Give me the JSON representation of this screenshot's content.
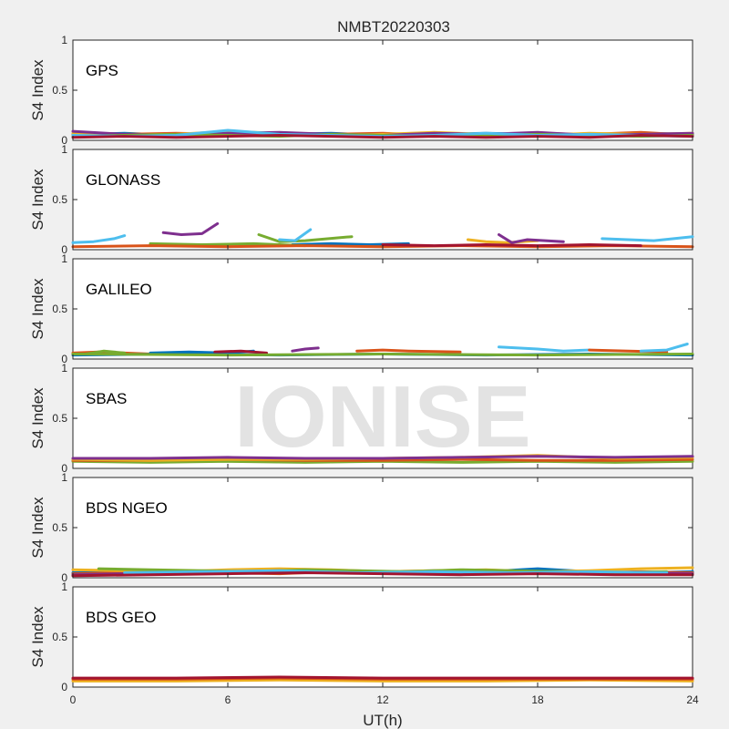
{
  "chart_data": {
    "type": "line",
    "title": "NMBT20220303",
    "xlabel": "UT(h)",
    "ylabel": "S4 Index",
    "xlim": [
      0,
      24
    ],
    "ylim": [
      0,
      1
    ],
    "x_ticks": [
      "0",
      "6",
      "12",
      "18",
      "24"
    ],
    "y_ticks": [
      "0",
      "0.5",
      "1"
    ],
    "watermark": "IONISE",
    "series_colors": [
      "#0072bd",
      "#d95319",
      "#edb120",
      "#7e2f8e",
      "#77ac30",
      "#4dbeee",
      "#a2142f"
    ],
    "panels": [
      {
        "label": "GPS",
        "series": [
          {
            "color": "#0072bd",
            "x": [
              0,
              2,
              4,
              6,
              8,
              10,
              12,
              14,
              16,
              18,
              20,
              22,
              24
            ],
            "y": [
              0.06,
              0.07,
              0.05,
              0.08,
              0.06,
              0.07,
              0.05,
              0.06,
              0.07,
              0.06,
              0.05,
              0.07,
              0.06
            ]
          },
          {
            "color": "#d95319",
            "x": [
              0,
              2,
              4,
              6,
              8,
              10,
              12,
              14,
              16,
              18,
              20,
              22,
              24
            ],
            "y": [
              0.05,
              0.06,
              0.07,
              0.06,
              0.05,
              0.06,
              0.07,
              0.05,
              0.06,
              0.07,
              0.06,
              0.08,
              0.05
            ]
          },
          {
            "color": "#edb120",
            "x": [
              0,
              2,
              4,
              6,
              8,
              10,
              12,
              14,
              16,
              18,
              20,
              22,
              24
            ],
            "y": [
              0.07,
              0.05,
              0.06,
              0.09,
              0.07,
              0.05,
              0.06,
              0.08,
              0.06,
              0.05,
              0.07,
              0.06,
              0.07
            ]
          },
          {
            "color": "#7e2f8e",
            "x": [
              0,
              2,
              4,
              6,
              8,
              10,
              12,
              14,
              16,
              18,
              20,
              22,
              24
            ],
            "y": [
              0.09,
              0.06,
              0.05,
              0.07,
              0.08,
              0.06,
              0.05,
              0.07,
              0.06,
              0.08,
              0.05,
              0.06,
              0.07
            ]
          },
          {
            "color": "#77ac30",
            "x": [
              0,
              2,
              4,
              6,
              8,
              10,
              12,
              14,
              16,
              18,
              20,
              22,
              24
            ],
            "y": [
              0.04,
              0.05,
              0.06,
              0.05,
              0.04,
              0.06,
              0.05,
              0.04,
              0.05,
              0.06,
              0.05,
              0.04,
              0.05
            ]
          },
          {
            "color": "#4dbeee",
            "x": [
              0,
              2,
              4,
              6,
              8,
              10,
              12,
              14,
              16,
              18,
              20,
              22,
              24
            ],
            "y": [
              0.05,
              0.04,
              0.05,
              0.1,
              0.06,
              0.05,
              0.04,
              0.05,
              0.07,
              0.05,
              0.06,
              0.05,
              0.04
            ]
          },
          {
            "color": "#a2142f",
            "x": [
              0,
              2,
              4,
              6,
              8,
              10,
              12,
              14,
              16,
              18,
              20,
              22,
              24
            ],
            "y": [
              0.03,
              0.04,
              0.03,
              0.04,
              0.05,
              0.04,
              0.03,
              0.04,
              0.03,
              0.04,
              0.03,
              0.05,
              0.04
            ]
          }
        ]
      },
      {
        "label": "GLONASS",
        "series": [
          {
            "color": "#4dbeee",
            "x": [
              0,
              0.8,
              1.6,
              2.0
            ],
            "y": [
              0.07,
              0.08,
              0.11,
              0.14
            ]
          },
          {
            "color": "#7e2f8e",
            "x": [
              3.5,
              4.2,
              5.0,
              5.6
            ],
            "y": [
              0.17,
              0.15,
              0.16,
              0.26
            ]
          },
          {
            "color": "#77ac30",
            "x": [
              7.2,
              8.0,
              9.0,
              10.8
            ],
            "y": [
              0.15,
              0.08,
              0.09,
              0.13
            ]
          },
          {
            "color": "#4dbeee",
            "x": [
              8.0,
              8.6,
              9.2
            ],
            "y": [
              0.1,
              0.09,
              0.2
            ]
          },
          {
            "color": "#0072bd",
            "x": [
              8.5,
              10.0,
              11.5,
              13.0
            ],
            "y": [
              0.05,
              0.06,
              0.05,
              0.06
            ]
          },
          {
            "color": "#edb120",
            "x": [
              15.3,
              16.0,
              16.8,
              18.0
            ],
            "y": [
              0.1,
              0.08,
              0.07,
              0.09
            ]
          },
          {
            "color": "#7e2f8e",
            "x": [
              16.5,
              17.0,
              17.6,
              19.0
            ],
            "y": [
              0.15,
              0.07,
              0.1,
              0.08
            ]
          },
          {
            "color": "#4dbeee",
            "x": [
              20.5,
              21.5,
              22.5,
              24.0
            ],
            "y": [
              0.11,
              0.1,
              0.09,
              0.13
            ]
          },
          {
            "color": "#77ac30",
            "x": [
              3.0,
              5.0,
              7.0,
              9.0
            ],
            "y": [
              0.06,
              0.05,
              0.06,
              0.04
            ]
          },
          {
            "color": "#d95319",
            "x": [
              0,
              3,
              6,
              9,
              12,
              15,
              18,
              21,
              24
            ],
            "y": [
              0.03,
              0.04,
              0.03,
              0.04,
              0.03,
              0.04,
              0.03,
              0.04,
              0.03
            ]
          },
          {
            "color": "#a2142f",
            "x": [
              12,
              14,
              16,
              18,
              20,
              22
            ],
            "y": [
              0.05,
              0.04,
              0.05,
              0.04,
              0.05,
              0.04
            ]
          }
        ]
      },
      {
        "label": "GALILEO",
        "series": [
          {
            "color": "#d95319",
            "x": [
              0,
              1,
              2,
              3
            ],
            "y": [
              0.06,
              0.07,
              0.06,
              0.05
            ]
          },
          {
            "color": "#77ac30",
            "x": [
              0.5,
              1.2,
              2.0
            ],
            "y": [
              0.05,
              0.08,
              0.06
            ]
          },
          {
            "color": "#0072bd",
            "x": [
              3.0,
              4.5,
              6.0,
              7.0
            ],
            "y": [
              0.06,
              0.07,
              0.06,
              0.08
            ]
          },
          {
            "color": "#a2142f",
            "x": [
              5.5,
              6.5,
              7.5
            ],
            "y": [
              0.07,
              0.08,
              0.06
            ]
          },
          {
            "color": "#7e2f8e",
            "x": [
              8.5,
              9.0,
              9.5
            ],
            "y": [
              0.08,
              0.1,
              0.11
            ]
          },
          {
            "color": "#d95319",
            "x": [
              11.0,
              12.0,
              13.0,
              15.0
            ],
            "y": [
              0.08,
              0.09,
              0.08,
              0.07
            ]
          },
          {
            "color": "#4dbeee",
            "x": [
              16.5,
              18.0,
              19.0,
              20.0
            ],
            "y": [
              0.12,
              0.1,
              0.08,
              0.09
            ]
          },
          {
            "color": "#d95319",
            "x": [
              20.0,
              21.5,
              23.0
            ],
            "y": [
              0.09,
              0.08,
              0.07
            ]
          },
          {
            "color": "#4dbeee",
            "x": [
              22.0,
              23.0,
              23.8
            ],
            "y": [
              0.08,
              0.09,
              0.15
            ]
          },
          {
            "color": "#0072bd",
            "x": [
              0,
              4,
              8,
              12,
              16,
              20,
              24
            ],
            "y": [
              0.04,
              0.05,
              0.04,
              0.05,
              0.04,
              0.05,
              0.04
            ]
          },
          {
            "color": "#77ac30",
            "x": [
              0,
              6,
              12,
              18,
              24
            ],
            "y": [
              0.05,
              0.04,
              0.05,
              0.04,
              0.05
            ]
          }
        ]
      },
      {
        "label": "SBAS",
        "series": [
          {
            "color": "#77ac30",
            "x": [
              0,
              3,
              6,
              9,
              12,
              15,
              18,
              21,
              24
            ],
            "y": [
              0.07,
              0.06,
              0.07,
              0.06,
              0.07,
              0.06,
              0.07,
              0.06,
              0.07
            ]
          },
          {
            "color": "#d95319",
            "x": [
              0,
              3,
              6,
              9,
              12,
              15,
              18,
              21,
              24
            ],
            "y": [
              0.08,
              0.08,
              0.09,
              0.08,
              0.08,
              0.09,
              0.08,
              0.08,
              0.09
            ]
          },
          {
            "color": "#edb120",
            "x": [
              0,
              3,
              6,
              9,
              12,
              15,
              18,
              21,
              24
            ],
            "y": [
              0.09,
              0.08,
              0.09,
              0.09,
              0.1,
              0.11,
              0.13,
              0.1,
              0.11
            ]
          },
          {
            "color": "#7e2f8e",
            "x": [
              0,
              3,
              6,
              9,
              12,
              15,
              18,
              21,
              24
            ],
            "y": [
              0.1,
              0.1,
              0.11,
              0.1,
              0.1,
              0.11,
              0.12,
              0.11,
              0.12
            ]
          }
        ]
      },
      {
        "label": "BDS NGEO",
        "series": [
          {
            "color": "#0072bd",
            "x": [
              0,
              2,
              4,
              6,
              8,
              10,
              12,
              14,
              16,
              18,
              20,
              22,
              24
            ],
            "y": [
              0.05,
              0.06,
              0.05,
              0.07,
              0.06,
              0.05,
              0.06,
              0.07,
              0.06,
              0.09,
              0.06,
              0.05,
              0.06
            ]
          },
          {
            "color": "#d95319",
            "x": [
              0,
              2,
              4,
              6,
              8,
              10,
              12,
              14,
              16,
              18,
              20,
              22,
              24
            ],
            "y": [
              0.04,
              0.05,
              0.06,
              0.05,
              0.04,
              0.06,
              0.05,
              0.04,
              0.05,
              0.06,
              0.05,
              0.06,
              0.05
            ]
          },
          {
            "color": "#edb120",
            "x": [
              0,
              2,
              4,
              6,
              8,
              10,
              12,
              14,
              16,
              18,
              20,
              22,
              24
            ],
            "y": [
              0.08,
              0.07,
              0.06,
              0.08,
              0.09,
              0.08,
              0.06,
              0.07,
              0.08,
              0.06,
              0.07,
              0.09,
              0.1
            ]
          },
          {
            "color": "#7e2f8e",
            "x": [
              0,
              2,
              4,
              6,
              8,
              10,
              12,
              14,
              16,
              18,
              20,
              22,
              24
            ],
            "y": [
              0.03,
              0.04,
              0.05,
              0.06,
              0.07,
              0.06,
              0.05,
              0.04,
              0.05,
              0.06,
              0.04,
              0.05,
              0.04
            ]
          },
          {
            "color": "#77ac30",
            "x": [
              1,
              3,
              5,
              7,
              9,
              11,
              13,
              15,
              17,
              19,
              21,
              23
            ],
            "y": [
              0.09,
              0.08,
              0.07,
              0.06,
              0.08,
              0.07,
              0.06,
              0.08,
              0.07,
              0.06,
              0.05,
              0.06
            ]
          },
          {
            "color": "#4dbeee",
            "x": [
              2,
              5,
              8,
              11,
              14,
              17,
              20,
              23
            ],
            "y": [
              0.05,
              0.06,
              0.07,
              0.05,
              0.06,
              0.05,
              0.06,
              0.05
            ]
          },
          {
            "color": "#a2142f",
            "x": [
              0,
              3,
              6,
              9,
              12,
              15,
              18,
              21,
              24
            ],
            "y": [
              0.02,
              0.03,
              0.04,
              0.05,
              0.04,
              0.03,
              0.04,
              0.03,
              0.03
            ]
          }
        ]
      },
      {
        "label": "BDS GEO",
        "series": [
          {
            "color": "#edb120",
            "x": [
              0,
              4,
              8,
              12,
              16,
              20,
              24
            ],
            "y": [
              0.06,
              0.06,
              0.07,
              0.06,
              0.06,
              0.07,
              0.06
            ]
          },
          {
            "color": "#d95319",
            "x": [
              0,
              4,
              8,
              12,
              16,
              20,
              24
            ],
            "y": [
              0.08,
              0.08,
              0.09,
              0.08,
              0.08,
              0.08,
              0.08
            ]
          },
          {
            "color": "#a2142f",
            "x": [
              0,
              4,
              8,
              12,
              16,
              20,
              24
            ],
            "y": [
              0.09,
              0.09,
              0.1,
              0.09,
              0.09,
              0.09,
              0.09
            ]
          }
        ]
      }
    ]
  }
}
